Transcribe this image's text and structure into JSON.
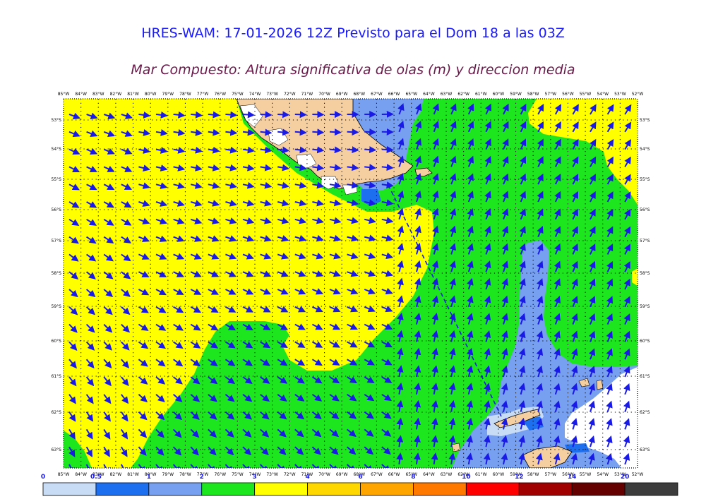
{
  "header": {
    "title": "HRES-WAM: 17-01-2026 12Z Previsto para el Dom 18 a las 03Z",
    "subtitle": "Mar Compuesto: Altura significativa de olas (m) y direccion media"
  },
  "map": {
    "lon_labels": [
      "85°W",
      "84°W",
      "83°W",
      "82°W",
      "81°W",
      "80°W",
      "79°W",
      "78°W",
      "77°W",
      "76°W",
      "75°W",
      "74°W",
      "73°W",
      "72°W",
      "71°W",
      "70°W",
      "69°W",
      "68°W",
      "67°W",
      "66°W",
      "65°W",
      "64°W",
      "63°W",
      "62°W",
      "61°W",
      "60°W",
      "59°W",
      "58°W",
      "57°W",
      "56°W",
      "55°W",
      "54°W",
      "53°W",
      "52°W"
    ],
    "lat_labels": [
      "53°S",
      "54°S",
      "55°S",
      "56°S",
      "57°S",
      "58°S",
      "59°S",
      "60°S",
      "61°S",
      "62°S",
      "63°S"
    ],
    "colors": {
      "land": "#f5cfa0",
      "ice_white": "#ffffff",
      "arrow": "#1a1ae6",
      "dashed_line": "#1a1ae6"
    }
  },
  "legend": {
    "tick_labels": [
      "0",
      "0.5",
      "1",
      "2",
      "3",
      "4",
      "6",
      "8",
      "10",
      "12",
      "14",
      "20"
    ],
    "colors": [
      "#c8dcf6",
      "#1e6ef0",
      "#78a0f0",
      "#1ee61e",
      "#ffff00",
      "#ffd700",
      "#ffa500",
      "#ff7800",
      "#ff0000",
      "#a00000",
      "#640000",
      "#3c3c3c"
    ]
  }
}
